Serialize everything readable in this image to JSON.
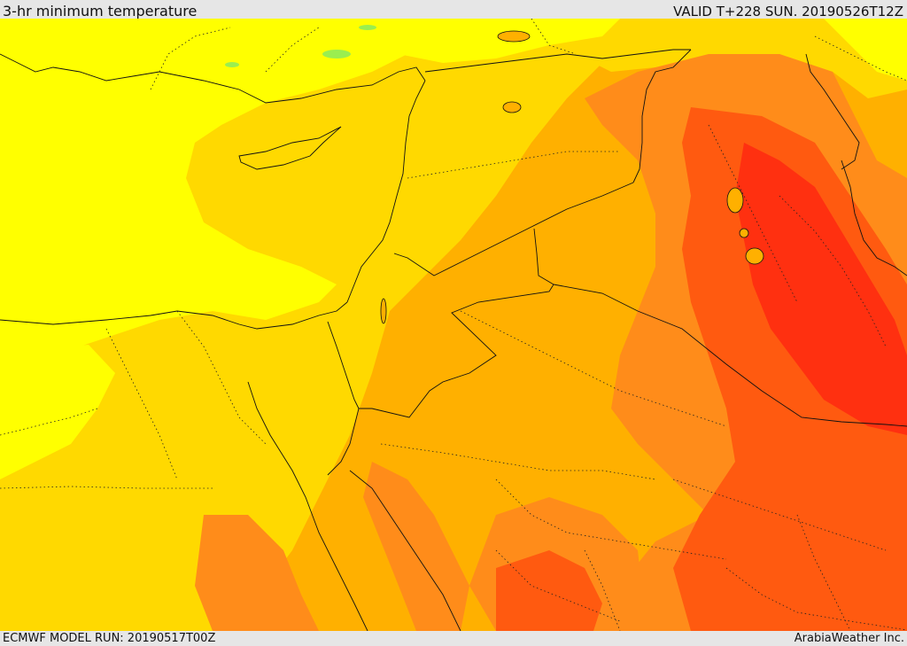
{
  "header": {
    "title": "3-hr minimum temperature",
    "valid": "VALID T+228 SUN. 20190526T12Z"
  },
  "footer": {
    "model_run": "ECMWF MODEL RUN: 20190517T00Z",
    "credit": "ArabiaWeather Inc."
  },
  "legend_colors": {
    "bright_yellow": "#ffff00",
    "gold": "#ffd900",
    "amber": "#ffb000",
    "orange": "#ff8c1a",
    "red_orange": "#ff5a10",
    "red": "#ff3010",
    "green_cool": "#9aee50"
  }
}
